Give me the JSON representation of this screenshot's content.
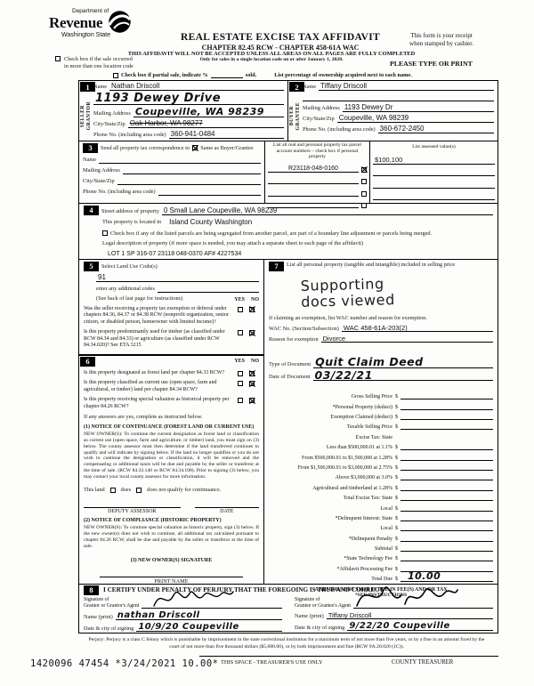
{
  "colors": {
    "ink": "#111111",
    "paper": "#fdfdfb"
  },
  "icons": {
    "logo_swirl": "dor-swirl-icon",
    "checkbox_checked": "x-in-box",
    "checkbox_empty": "empty-box",
    "signature": "handwritten-scribble"
  },
  "header": {
    "logo_dept": "Department of",
    "logo_revenue": "Revenue",
    "logo_state": "Washington State",
    "title": "REAL ESTATE EXCISE TAX AFFIDAVIT",
    "chapter": "CHAPTER 82.45 RCW  -  CHAPTER 458-61A WAC",
    "warning": "THIS AFFIDAVIT WILL NOT BE ACCEPTED UNLESS ALL AREAS ON ALL PAGES ARE FULLY COMPLETED",
    "single_location_note": "Only for sales in a single location code on or after January 1, 2020.",
    "receipt_note_1": "This form is your receipt",
    "receipt_note_2": "when stamped by cashier.",
    "please_type": "PLEASE TYPE OR PRINT",
    "multi_location_1": "Check box if the sale occurred",
    "multi_location_2": "in more than one location code",
    "partial_sale_label": "Check box if partial sale, indicate %",
    "sold_label": "sold.",
    "ownership_note": "List percentage of ownership acquired next to each name."
  },
  "section1": {
    "num": "1",
    "side_1": "SELLER",
    "side_2": "GRANTOR",
    "name_label": "Name",
    "name_value": "Nathan Driscoll",
    "handwritten_line": "1193 Dewey Drive",
    "mailing_label": "Mailing Address",
    "mailing_value": "Coupeville, WA 98239",
    "csz_label": "City/State/Zip",
    "csz_value": "Oak Harbor, WA 98277",
    "phone_label": "Phone No. (including area code)",
    "phone_value": "360-941-0484"
  },
  "section2": {
    "num": "2",
    "side_1": "BUYER",
    "side_2": "GRANTEE",
    "name_label": "Name",
    "name_value": "Tiffany Driscoll",
    "mailing_label": "Mailing Address",
    "mailing_value": "1193 Dewey Dr",
    "csz_label": "City/State/Zip",
    "csz_value": "Coupeville, WA 98239",
    "phone_label": "Phone No. (including area code)",
    "phone_value": "360-672-2450"
  },
  "section3": {
    "num": "3",
    "send_label": "Send all property tax correspondence to",
    "same_as_label": "Same as Buyer/Grantee",
    "name_label": "Name",
    "mailing_label": "Mailing Address",
    "csz_label": "City/State/Zip",
    "phone_label": "Phone No. (including area code)",
    "parcel_header": "List all real and personal property tax parcel account numbers – check box if personal property",
    "parcel_value": "R23118-048-0160",
    "assessed_header": "List assessed value(s)",
    "assessed_value": "$100,100"
  },
  "section4": {
    "num": "4",
    "street_label": "Street address of property",
    "street_value": "0 Small Lane Coupeville, WA 98239",
    "located_label": "This property is located in",
    "located_value": "Island County Washington",
    "segregated_label": "Check box if any of the listed parcels are being segregated from another parcel, are part of a boundary line adjustment or parcels being merged.",
    "legal_label": "Legal description of property (if more space is needed, you may attach a separate sheet to each page of the affidavit)",
    "legal_value": "LOT 1 SP 316-07 23118 048-0370 AF# 4227534"
  },
  "section5": {
    "num": "5",
    "title": "Select Land Use Code(s)",
    "code_value": "91",
    "additional_label": "enter any additional codes",
    "see_back": "(See back of last page for instructions)",
    "yes": "YES",
    "no": "NO",
    "q1": "Was the seller receiving a property tax exemption or deferral under chapters 84.36, 84.37 or 84.38 RCW (nonprofit organization, senior citizen, or disabled person, homeowner with limited income)?",
    "q2": "Is this property predominantly used for timber (as classified under RCW 84.34 and 84.33) or agriculture (as classified under RCW 84.34.020)? See ETA 3215"
  },
  "section6": {
    "num": "6",
    "yes": "YES",
    "no": "NO",
    "q1": "Is this property designated as forest land per chapter 84.33 RCW?",
    "q2": "Is this property classified as current use (open space, farm and agricultural, or timber) land per chapter 84.34 RCW?",
    "q3": "Is this property receiving special valuation as historical property per chapter 84.26 RCW?",
    "if_yes_note": "If any answers are yes, complete as instructed below.",
    "notice1_title": "(1) NOTICE OF CONTINUANCE (FOREST LAND OR CURRENT USE)",
    "notice1_body": "NEW OWNER(S): To continue the current designation as forest land or classification as current use (open space, farm and agriculture, or timber) land, you must sign on (3) below. The county assessor must then determine if the land transferred continues to qualify and will indicate by signing below. If the land no longer qualifies or you do not wish to continue the designation or classification, it will be removed and the compensating or additional taxes will be due and payable by the seller or transferor at the time of sale. (RCW 84.33.140 or RCW 84.34.108). Prior to signing (3) below, you may contact your local county assessor for more information.",
    "this_land_label": "This land",
    "does_label": "does",
    "does_not_label": "does not qualify for continuance.",
    "deputy_label": "DEPUTY ASSESSOR",
    "date_label": "DATE",
    "notice2_title": "(2) NOTICE OF COMPLIANCE (HISTORIC PROPERTY)",
    "notice2_body": "NEW OWNER(S): To continue special valuation as historic property, sign (3) below. If the new owner(s) does not wish to continue, all additional tax calculated pursuant to chapter 84.26 RCW, shall be due and payable by the seller or transferor at the time of sale.",
    "owner_signature_label": "(3) NEW OWNER(S) SIGNATURE",
    "print_name_label": "PRINT NAME"
  },
  "section7": {
    "num": "7",
    "title": "List all personal property (tangible and intangible) included in selling price",
    "stamp_line1": "Supporting",
    "stamp_line2": "docs viewed",
    "exemption_note": "If claiming an exemption, list WAC number and reason for exemption.",
    "wac_label": "WAC No. (Section/Subsection)",
    "wac_value": "WAC 458-61A-203(2)",
    "reason_label": "Reason for exemption",
    "reason_value": "Divorce",
    "doc_type_label": "Type of Document",
    "doc_type_value": "Quit Claim Deed",
    "doc_date_label": "Date of Document",
    "doc_date_value": "03/22/21",
    "money_lines": [
      {
        "label": "Gross Selling Price",
        "dollar": "$",
        "value": ""
      },
      {
        "label": "*Personal Property (deduct)",
        "dollar": "$",
        "value": ""
      },
      {
        "label": "Exemption Claimed (deduct)",
        "dollar": "$",
        "value": ""
      },
      {
        "label": "Taxable Selling Price",
        "dollar": "$",
        "value": ""
      },
      {
        "label": "Excise Tax: State",
        "dollar": "",
        "value": ""
      },
      {
        "label": "Less than $500,000.01 at 1.1%",
        "dollar": "$",
        "value": ""
      },
      {
        "label": "From $500,000.01 to $1,500,000 at 1.28%",
        "dollar": "$",
        "value": ""
      },
      {
        "label": "From $1,500,000.01 to $3,000,000 at 2.75%",
        "dollar": "$",
        "value": ""
      },
      {
        "label": "Above $3,000,000 at 3.0%",
        "dollar": "$",
        "value": ""
      },
      {
        "label": "Agricultural and timberland at 1.28%",
        "dollar": "$",
        "value": ""
      },
      {
        "label": "Total Excise Tax: State",
        "dollar": "$",
        "value": ""
      },
      {
        "label": "Local",
        "dollar": "$",
        "value": ""
      },
      {
        "label": "*Delinquent Interest: State",
        "dollar": "$",
        "value": ""
      },
      {
        "label": "Local",
        "dollar": "$",
        "value": ""
      },
      {
        "label": "*Delinquent Penalty",
        "dollar": "$",
        "value": ""
      },
      {
        "label": "Subtotal",
        "dollar": "$",
        "value": ""
      },
      {
        "label": "*State Technology Fee",
        "dollar": "$",
        "value": ""
      },
      {
        "label": "*Affidavit Processing Fee",
        "dollar": "$",
        "value": ""
      },
      {
        "label": "Total Due",
        "dollar": "$",
        "value": "10.00"
      }
    ],
    "minimum_note": "A MINIMUM OF $10.00 IS DUE IN FEE(S) AND/OR TAX",
    "see_instructions": "*SEE INSTRUCTIONS"
  },
  "section8": {
    "num": "8",
    "certify_text": "I CERTIFY UNDER PENALTY OF PERJURY THAT THE FOREGOING IS TRUE AND CORRECT",
    "grantor_sig_label_1": "Signature of",
    "grantor_sig_label_2": "Grantor or Grantor's Agent",
    "grantor_name_label": "Name (print)",
    "grantor_name_value": "nathan Driscoll",
    "grantor_date_label": "Date & city of signing",
    "grantor_date_value": "10/9/20  Coupeville",
    "grantee_sig_label_1": "Signature of",
    "grantee_sig_label_2": "Grantee or Grantee's Agent",
    "grantee_name_label": "Name (print)",
    "grantee_name_value": "Tiffany Driscoll",
    "grantee_date_label": "Date & city of signing",
    "grantee_date_value": "9/22/20  Coupeville"
  },
  "perjury_text": "Perjury: Perjury is a class C felony which is punishable by imprisonment in the state correctional institution for a maximum term of not more than five years, or by a fine in an amount fixed by the court of not more than five thousand dollars ($5,000.00), or by both imprisonment and fine (RCW 9A.20.020 (1C)).",
  "footer": {
    "receipt_stamp": "1420096 47454 *3/24/2021 10.00*",
    "treasurer_space": "THIS SPACE - TREASURER'S USE ONLY",
    "county_treasurer": "COUNTY TREASURER"
  }
}
